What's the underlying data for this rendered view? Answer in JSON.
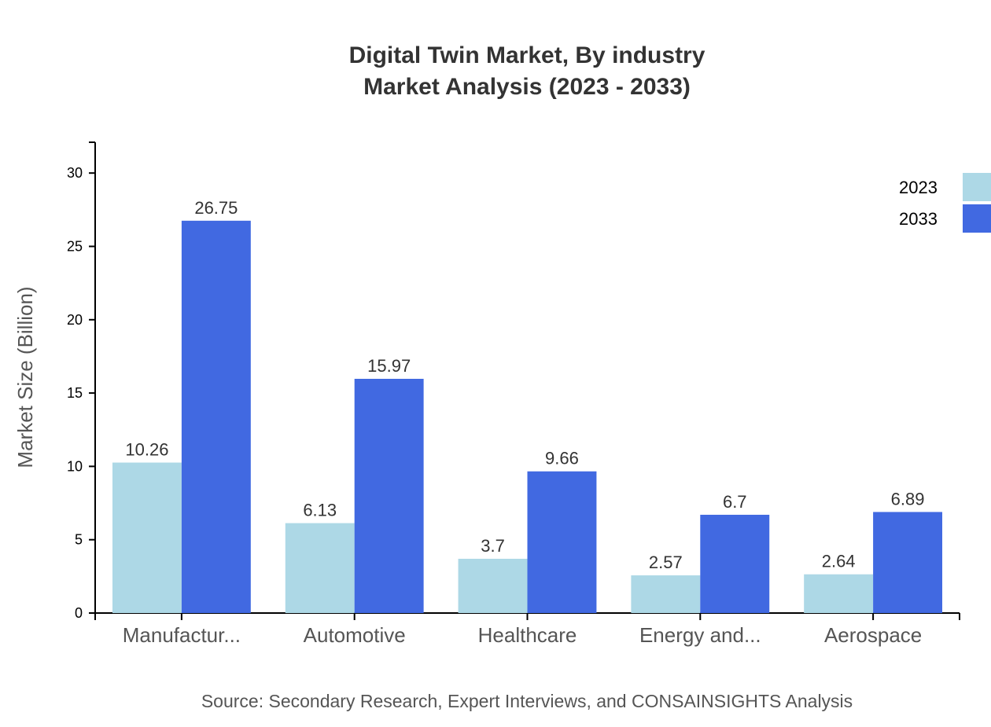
{
  "chart_data": {
    "type": "bar",
    "title": "Digital Twin Market, By industry",
    "subtitle": "Market Analysis (2023 - 2033)",
    "xlabel": "",
    "ylabel": "Market Size (Billion)",
    "ylim": [
      0,
      32.1
    ],
    "yticks": [
      0,
      5,
      10,
      15,
      20,
      25,
      30
    ],
    "grid": false,
    "legend_position": "top-right",
    "categories": [
      "Manufactur...",
      "Automotive",
      "Healthcare",
      "Energy and...",
      "Aerospace"
    ],
    "series": [
      {
        "name": "2023",
        "color": "#add8e6",
        "values": [
          10.26,
          6.13,
          3.7,
          2.57,
          2.64
        ]
      },
      {
        "name": "2033",
        "color": "#4169e1",
        "values": [
          26.75,
          15.97,
          9.66,
          6.7,
          6.89
        ]
      }
    ],
    "source": "Source: Secondary Research, Expert Interviews, and CONSAINSIGHTS Analysis"
  }
}
